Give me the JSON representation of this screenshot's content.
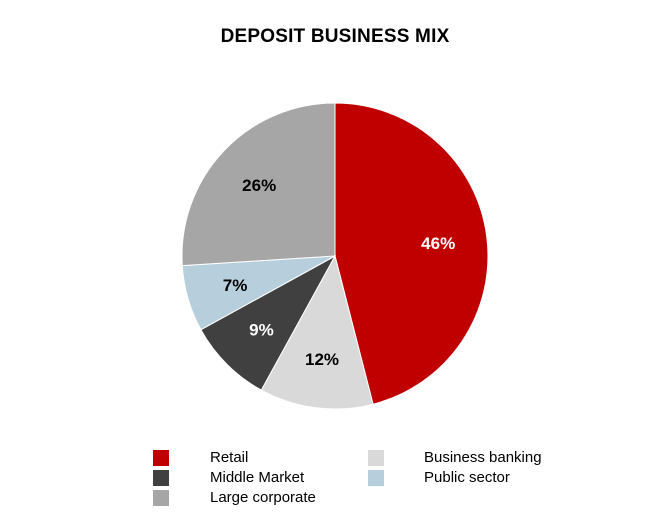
{
  "chart_data": {
    "type": "pie",
    "title": "DEPOSIT BUSINESS MIX",
    "slices": [
      {
        "name": "Retail",
        "value": 46,
        "label": "46%",
        "color": "#c00000",
        "label_color": "#ffffff"
      },
      {
        "name": "Business banking",
        "value": 12,
        "label": "12%",
        "color": "#d9d9d9",
        "label_color": "#000000"
      },
      {
        "name": "Middle Market",
        "value": 9,
        "label": "9%",
        "color": "#404040",
        "label_color": "#ffffff"
      },
      {
        "name": "Public sector",
        "value": 7,
        "label": "7%",
        "color": "#b7cfdc",
        "label_color": "#000000"
      },
      {
        "name": "Large corporate",
        "value": 26,
        "label": "26%",
        "color": "#a6a6a6",
        "label_color": "#000000"
      }
    ],
    "legend": {
      "position": "bottom",
      "items": [
        "Retail",
        "Middle Market",
        "Large corporate",
        "Business banking",
        "Public sector"
      ]
    }
  }
}
